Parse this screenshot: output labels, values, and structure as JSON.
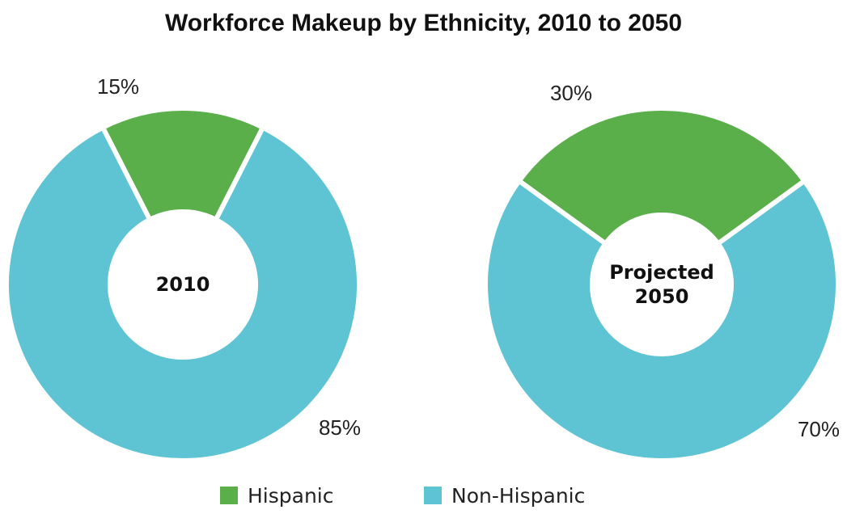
{
  "chart_data": {
    "type": "donut",
    "title": "Workforce Makeup by Ethnicity, 2010 to 2050",
    "categories": [
      "Hispanic",
      "Non-Hispanic"
    ],
    "colors": {
      "Hispanic": "#5aaf4a",
      "Non-Hispanic": "#5ec4d4"
    },
    "charts": [
      {
        "center_label": [
          "2010"
        ],
        "values": [
          15,
          85
        ],
        "labels": [
          "15%",
          "85%"
        ]
      },
      {
        "center_label": [
          "Projected",
          "2050"
        ],
        "values": [
          30,
          70
        ],
        "labels": [
          "30%",
          "70%"
        ]
      }
    ],
    "legend": {
      "position": "bottom",
      "entries": [
        "Hispanic",
        "Non-Hispanic"
      ]
    }
  }
}
